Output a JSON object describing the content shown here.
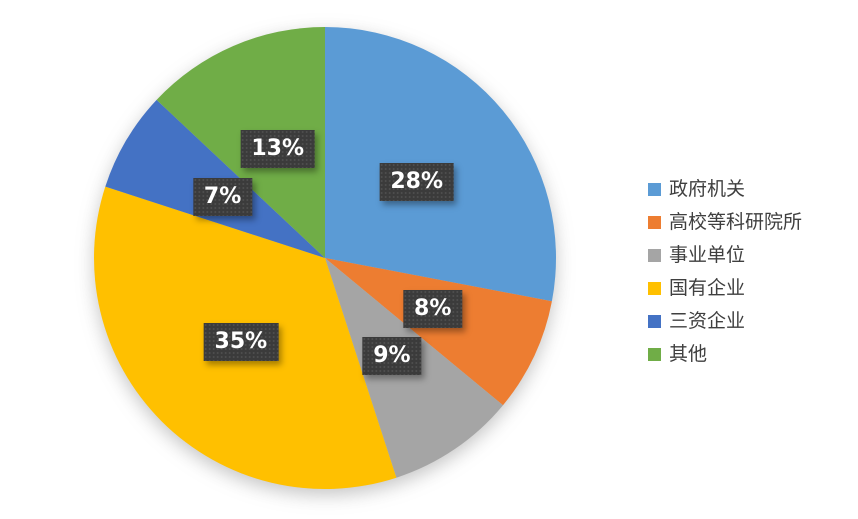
{
  "page": {
    "background_color": "#ffffff"
  },
  "chart_data": {
    "type": "pie",
    "title": "",
    "start_angle_deg": 0,
    "direction": "clockwise",
    "legend_position": "right",
    "slices": [
      {
        "label": "政府机关",
        "value": 28,
        "display": "28%",
        "color": "#5B9BD5"
      },
      {
        "label": "高校等科研院所",
        "value": 8,
        "display": "8%",
        "color": "#ED7D31"
      },
      {
        "label": "事业单位",
        "value": 9,
        "display": "9%",
        "color": "#A5A5A5"
      },
      {
        "label": "国有企业",
        "value": 35,
        "display": "35%",
        "color": "#FFC000"
      },
      {
        "label": "三资企业",
        "value": 7,
        "display": "7%",
        "color": "#4472C4"
      },
      {
        "label": "其他",
        "value": 13,
        "display": "13%",
        "color": "#70AD47"
      }
    ],
    "data_label_style": {
      "background": "#3B3B3B",
      "text_color": "#FFFFFF"
    }
  }
}
